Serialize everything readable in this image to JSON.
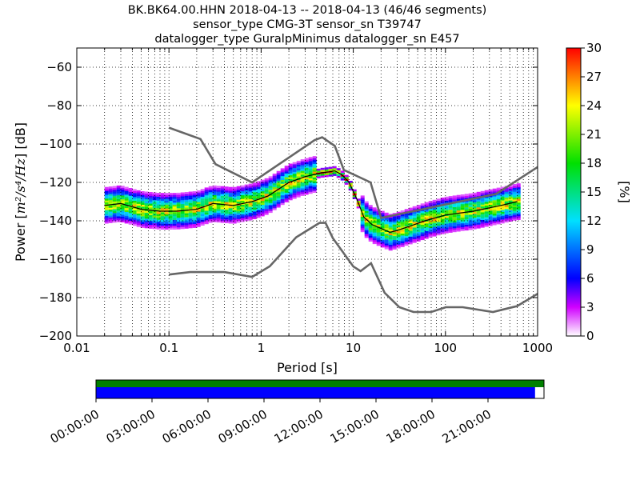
{
  "title_lines": [
    "BK.BK64.00.HHN   2018-04-13 -- 2018-04-13  (46/46 segments)",
    "sensor_type CMG-3T sensor_sn T39747",
    "datalogger_type GuralpMinimus datalogger_sn E457"
  ],
  "colors": {
    "noise_model": "#666666",
    "mode_line": "#000000",
    "coverage_data": "#008000",
    "coverage_psd": "#0000ff",
    "grid": "#000000"
  },
  "chart_data": {
    "type": "heatmap",
    "xlabel": "Period [s]",
    "ylabel_prefix": "Power [",
    "ylabel_units": "m²/s⁴/Hz",
    "ylabel_suffix": "] [dB]",
    "x_scale": "log",
    "xlim": [
      0.01,
      1000
    ],
    "ylim": [
      -200,
      -50
    ],
    "x_tick_labels": [
      "0.01",
      "0.1",
      "1",
      "10",
      "100",
      "1000"
    ],
    "y_tick_labels": [
      "−200",
      "−180",
      "−160",
      "−140",
      "−120",
      "−100",
      "−80",
      "−60"
    ],
    "grid": true,
    "colorbar": {
      "label": "[%]",
      "range": [
        0,
        30
      ],
      "tick_labels": [
        "0",
        "3",
        "6",
        "9",
        "12",
        "15",
        "18",
        "21",
        "24",
        "27",
        "30"
      ]
    },
    "new_high_noise_model": {
      "periods": [
        0.1,
        0.22,
        0.32,
        0.8,
        3.8,
        4.6,
        6.3,
        7.9,
        15.4,
        20,
        354.8,
        1000
      ],
      "power": [
        -91.5,
        -97.4,
        -110.5,
        -120,
        -98,
        -96.5,
        -101,
        -113.5,
        -120,
        -138.5,
        -126,
        -112
      ]
    },
    "new_low_noise_model": {
      "periods": [
        0.1,
        0.17,
        0.4,
        0.8,
        1.24,
        2.4,
        4.3,
        5,
        6,
        10,
        12,
        15.6,
        21.9,
        31.6,
        45,
        70,
        101,
        154,
        328,
        600,
        1000
      ],
      "power": [
        -168,
        -166.7,
        -166.7,
        -169.2,
        -163.7,
        -148.6,
        -141.1,
        -141.1,
        -149,
        -163.8,
        -166.2,
        -162.1,
        -177.5,
        -185,
        -187.5,
        -187.5,
        -185,
        -185,
        -187.5,
        -184.4,
        -178
      ]
    },
    "mode_curve": {
      "periods": [
        0.02,
        0.03,
        0.05,
        0.08,
        0.12,
        0.2,
        0.3,
        0.5,
        0.8,
        1.2,
        2,
        3,
        4.5,
        5.5,
        6.3,
        7.5,
        9,
        11,
        13,
        16,
        20,
        25,
        30,
        40,
        60,
        100,
        200,
        400,
        600
      ],
      "power": [
        -132,
        -131,
        -134,
        -135,
        -135,
        -134,
        -131,
        -132,
        -130,
        -127,
        -120,
        -117,
        -115,
        -114.5,
        -114,
        -116,
        -120,
        -129,
        -138,
        -142,
        -144,
        -146,
        -145,
        -143,
        -140,
        -137,
        -135,
        -132,
        -130
      ]
    },
    "coverage": {
      "time_tick_labels": [
        "00:00:00",
        "03:00:00",
        "06:00:00",
        "09:00:00",
        "12:00:00",
        "15:00:00",
        "18:00:00",
        "21:00:00"
      ],
      "data_fraction": 1.0,
      "psd_fraction": 0.98
    }
  }
}
